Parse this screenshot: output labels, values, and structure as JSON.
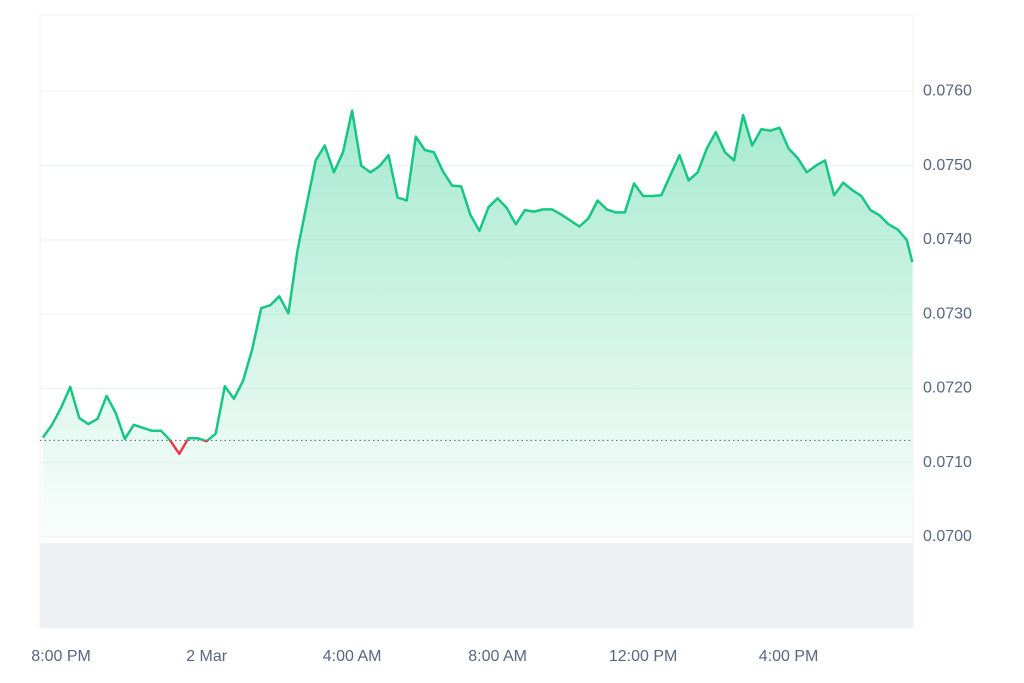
{
  "chart_data": {
    "type": "line",
    "x": [
      19.5,
      19.75,
      20,
      20.25,
      20.5,
      20.75,
      21,
      21.25,
      21.5,
      21.75,
      22,
      22.25,
      22.5,
      22.75,
      23,
      23.25,
      23.5,
      23.75,
      24,
      24.25,
      24.5,
      24.75,
      25,
      25.25,
      25.5,
      25.75,
      26,
      26.25,
      26.5,
      26.75,
      27,
      27.25,
      27.5,
      27.75,
      28,
      28.25,
      28.5,
      28.75,
      29,
      29.25,
      29.5,
      29.75,
      30,
      30.25,
      30.5,
      30.75,
      31,
      31.25,
      31.5,
      31.75,
      32,
      32.25,
      32.5,
      32.75,
      33,
      33.25,
      33.5,
      33.75,
      34,
      34.25,
      34.5,
      34.75,
      35,
      35.25,
      35.5,
      35.75,
      36,
      36.25,
      36.5,
      36.75,
      37,
      37.25,
      37.5,
      37.75,
      38,
      38.25,
      38.5,
      38.75,
      39,
      39.25,
      39.5,
      39.75,
      40,
      40.25,
      40.5,
      40.75,
      41,
      41.25,
      41.5,
      41.75,
      42,
      42.25,
      42.5,
      42.75,
      43,
      43.25,
      43.4
    ],
    "series": [
      {
        "color": "#16c784",
        "down_color": "#ea3943",
        "values": [
          0.07134,
          0.07151,
          0.07174,
          0.07202,
          0.0716,
          0.07152,
          0.07159,
          0.0719,
          0.07167,
          0.07132,
          0.07151,
          0.07147,
          0.07143,
          0.07143,
          0.0713,
          0.07112,
          0.07133,
          0.07133,
          0.07129,
          0.07139,
          0.07203,
          0.07186,
          0.0721,
          0.07252,
          0.07308,
          0.07312,
          0.07324,
          0.07301,
          0.07386,
          0.07447,
          0.07507,
          0.07527,
          0.07491,
          0.07518,
          0.07574,
          0.075,
          0.07491,
          0.07499,
          0.07514,
          0.07457,
          0.07453,
          0.07539,
          0.07521,
          0.07518,
          0.07492,
          0.07473,
          0.07472,
          0.07434,
          0.07412,
          0.07444,
          0.07456,
          0.07443,
          0.07421,
          0.0744,
          0.07438,
          0.07441,
          0.07441,
          0.07434,
          0.07426,
          0.07418,
          0.07429,
          0.07453,
          0.07441,
          0.07437,
          0.07437,
          0.07476,
          0.07459,
          0.07459,
          0.0746,
          0.07487,
          0.07514,
          0.0748,
          0.07491,
          0.07523,
          0.07545,
          0.07518,
          0.07507,
          0.07568,
          0.07527,
          0.07549,
          0.07547,
          0.07551,
          0.07523,
          0.0751,
          0.07491,
          0.075,
          0.07507,
          0.0746,
          0.07477,
          0.07467,
          0.07459,
          0.0744,
          0.07433,
          0.07421,
          0.07414,
          0.074,
          0.0737
        ]
      }
    ],
    "baseline": 0.0713,
    "xlim": [
      19.42,
      43.42
    ],
    "xticks": [
      {
        "value": 20,
        "label": "8:00 PM"
      },
      {
        "value": 24,
        "label": "2 Mar"
      },
      {
        "value": 28,
        "label": "4:00 AM"
      },
      {
        "value": 32,
        "label": "8:00 AM"
      },
      {
        "value": 36,
        "label": "12:00 PM"
      },
      {
        "value": 40,
        "label": "4:00 PM"
      }
    ],
    "ylim": [
      0.07,
      0.077
    ],
    "yticks": [
      {
        "value": 0.07,
        "label": "0.0700"
      },
      {
        "value": 0.071,
        "label": "0.0710"
      },
      {
        "value": 0.072,
        "label": "0.0720"
      },
      {
        "value": 0.073,
        "label": "0.0730"
      },
      {
        "value": 0.074,
        "label": "0.0740"
      },
      {
        "value": 0.075,
        "label": "0.0750"
      },
      {
        "value": 0.076,
        "label": "0.0760"
      }
    ],
    "grid": true
  }
}
